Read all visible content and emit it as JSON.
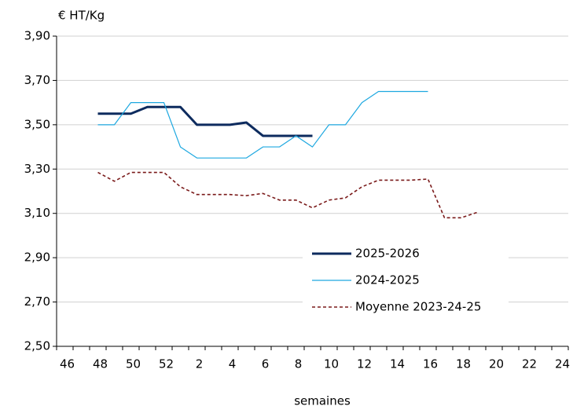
{
  "chart_data": {
    "type": "line",
    "y_label": "€ HT/Kg",
    "x_label": "semaines",
    "categories": [
      46,
      null,
      48,
      null,
      50,
      null,
      52,
      null,
      2,
      null,
      4,
      null,
      6,
      null,
      8,
      null,
      10,
      null,
      12,
      null,
      14,
      null,
      16,
      null,
      18,
      null,
      20,
      null,
      22,
      null,
      24
    ],
    "series": [
      {
        "name": "2025-2026",
        "color": "#0d2b5e",
        "values": [
          null,
          null,
          3.55,
          3.55,
          3.55,
          3.58,
          3.58,
          3.58,
          3.5,
          3.5,
          3.5,
          3.51,
          3.45,
          3.45,
          3.45,
          3.45,
          null,
          null,
          null,
          null,
          null,
          null,
          null,
          null,
          null,
          null,
          null,
          null,
          null,
          null,
          null
        ]
      },
      {
        "name": "2024-2025",
        "color": "#1ea8e0",
        "values": [
          null,
          null,
          3.5,
          3.5,
          3.6,
          3.6,
          3.6,
          3.4,
          3.35,
          3.35,
          3.35,
          3.35,
          3.4,
          3.4,
          3.45,
          3.4,
          3.5,
          3.5,
          3.6,
          3.65,
          3.65,
          3.65,
          3.65,
          null,
          null,
          null,
          null,
          null,
          null,
          null,
          null
        ]
      },
      {
        "name": "Moyenne 2023-24-25",
        "color": "#7a1a1a",
        "dashed": true,
        "values": [
          null,
          null,
          3.285,
          3.245,
          3.285,
          3.285,
          3.285,
          3.22,
          3.185,
          3.185,
          3.185,
          3.18,
          3.19,
          3.16,
          3.16,
          3.125,
          3.16,
          3.17,
          3.22,
          3.25,
          3.25,
          3.25,
          3.255,
          3.08,
          3.08,
          3.105,
          null,
          null,
          null,
          null,
          null
        ]
      }
    ],
    "ylim": [
      2.5,
      3.9
    ],
    "yticks": [
      {
        "value": 2.5,
        "label": "2,50"
      },
      {
        "value": 2.7,
        "label": "2,70"
      },
      {
        "value": 2.9,
        "label": "2,90"
      },
      {
        "value": 3.1,
        "label": "3,10"
      },
      {
        "value": 3.3,
        "label": "3,30"
      },
      {
        "value": 3.5,
        "label": "3,50"
      },
      {
        "value": 3.7,
        "label": "3,70"
      },
      {
        "value": 3.9,
        "label": "3,90"
      }
    ],
    "grid": true
  }
}
